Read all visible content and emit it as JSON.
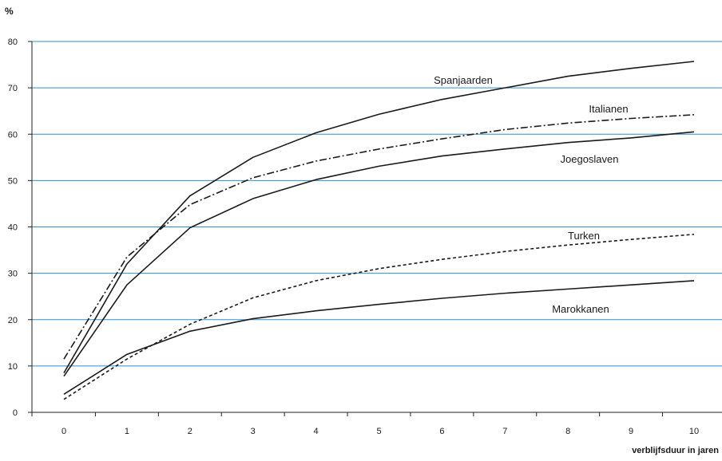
{
  "chart_data": {
    "type": "line",
    "title": "",
    "ylabel": "%",
    "xlabel": "verblijfsduur in jaren",
    "ylim": [
      0,
      80
    ],
    "xlim": [
      0,
      10
    ],
    "x": [
      0,
      1,
      2,
      3,
      4,
      5,
      6,
      7,
      8,
      9,
      10
    ],
    "y_ticks": [
      0,
      10,
      20,
      30,
      40,
      50,
      60,
      70,
      80
    ],
    "x_ticks": [
      0,
      1,
      2,
      3,
      4,
      5,
      6,
      7,
      8,
      9,
      10
    ],
    "grid": true,
    "grid_color": "#2f8fd0",
    "line_color": "#1a1a1a",
    "series": [
      {
        "name": "Spanjaarden",
        "style": "solid",
        "values": [
          8.5,
          32,
          46.7,
          55,
          60.3,
          64.3,
          67.5,
          70,
          72.5,
          74.2,
          75.7
        ]
      },
      {
        "name": "Italianen",
        "style": "dashdot",
        "values": [
          11.5,
          33.5,
          44.8,
          50.6,
          54.2,
          56.8,
          59,
          61,
          62.4,
          63.4,
          64.2
        ]
      },
      {
        "name": "Joegoslaven",
        "style": "solid",
        "values": [
          7.8,
          27.5,
          39.8,
          46.1,
          50.2,
          53.1,
          55.3,
          56.8,
          58.2,
          59.2,
          60.5
        ]
      },
      {
        "name": "Turken",
        "style": "dotted",
        "values": [
          2.8,
          11.5,
          19,
          24.7,
          28.4,
          31,
          33,
          34.7,
          36.1,
          37.3,
          38.4
        ]
      },
      {
        "name": "Marokkanen",
        "style": "solid",
        "values": [
          3.9,
          12.5,
          17.5,
          20.2,
          21.9,
          23.3,
          24.6,
          25.7,
          26.6,
          27.5,
          28.4
        ]
      }
    ]
  }
}
